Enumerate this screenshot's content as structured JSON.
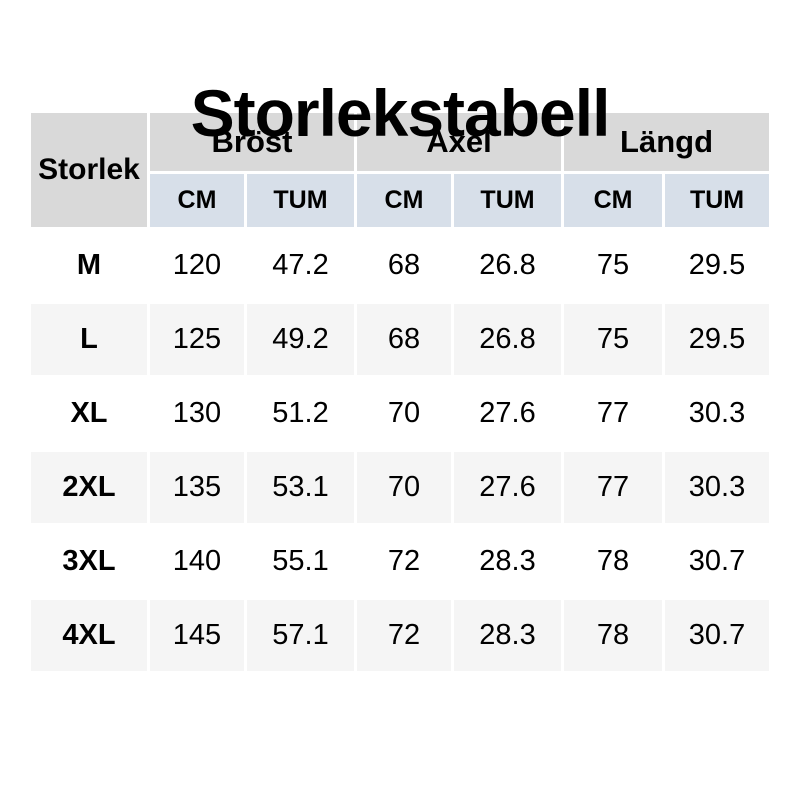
{
  "title": "Storlekstabell",
  "table": {
    "size_column_header": "Storlek",
    "groups": [
      {
        "label": "Bröst"
      },
      {
        "label": "Axel"
      },
      {
        "label": "Längd"
      }
    ],
    "unit_headers": [
      "CM",
      "TUM"
    ],
    "rows": [
      {
        "size": "M",
        "values": [
          "120",
          "47.2",
          "68",
          "26.8",
          "75",
          "29.5"
        ]
      },
      {
        "size": "L",
        "values": [
          "125",
          "49.2",
          "68",
          "26.8",
          "75",
          "29.5"
        ]
      },
      {
        "size": "XL",
        "values": [
          "130",
          "51.2",
          "70",
          "27.6",
          "77",
          "30.3"
        ]
      },
      {
        "size": "2XL",
        "values": [
          "135",
          "53.1",
          "70",
          "27.6",
          "77",
          "30.3"
        ]
      },
      {
        "size": "3XL",
        "values": [
          "140",
          "55.1",
          "72",
          "28.3",
          "78",
          "30.7"
        ]
      },
      {
        "size": "4XL",
        "values": [
          "145",
          "57.1",
          "72",
          "28.3",
          "78",
          "30.7"
        ]
      }
    ],
    "colors": {
      "group_header_bg": "#d9d9d9",
      "unit_header_bg": "#d7dfe9",
      "row_alt_bg": "#f5f5f5",
      "text": "#000000"
    }
  }
}
